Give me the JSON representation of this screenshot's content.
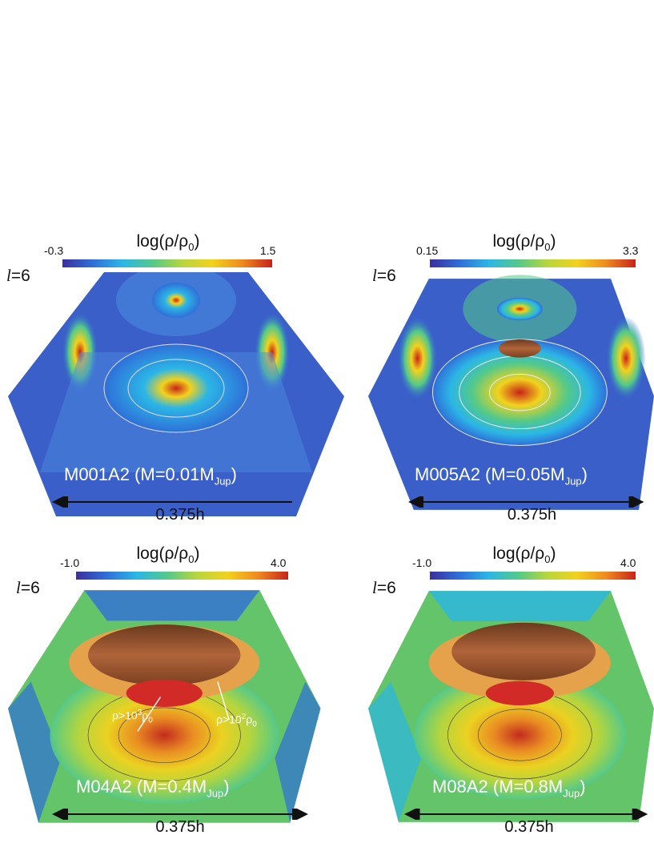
{
  "panels": [
    {
      "colorbar": {
        "title_main": "log(ρ/ρ",
        "title_sub": "0",
        "title_end": ")",
        "min": "-0.3",
        "max": "1.5"
      },
      "param": {
        "symbol": "l",
        "value": "=6"
      },
      "label": {
        "main": "M001A2 (M=0.01M",
        "sub": "Jup",
        "end": ")"
      },
      "scale": "0.375h",
      "annotations": []
    },
    {
      "colorbar": {
        "title_main": "log(ρ/ρ",
        "title_sub": "0",
        "title_end": ")",
        "min": "0.15",
        "max": "3.3"
      },
      "param": {
        "symbol": "l",
        "value": "=6"
      },
      "label": {
        "main": "M005A2 (M=0.05M",
        "sub": "Jup",
        "end": ")"
      },
      "scale": "0.375h",
      "annotations": []
    },
    {
      "colorbar": {
        "title_main": "log(ρ/ρ",
        "title_sub": "0",
        "title_end": ")",
        "min": "-1.0",
        "max": "4.0"
      },
      "param": {
        "symbol": "l",
        "value": "=6"
      },
      "label": {
        "main": "M04A2 (M=0.4M",
        "sub": "Jup",
        "end": ")"
      },
      "scale": "0.375h",
      "annotations": [
        {
          "pre": "ρ>10",
          "sup": "3",
          "mid": "ρ",
          "sub": "0"
        },
        {
          "pre": "ρ>10",
          "sup": "2",
          "mid": "ρ",
          "sub": "0"
        }
      ]
    },
    {
      "colorbar": {
        "title_main": "log(ρ/ρ",
        "title_sub": "0",
        "title_end": ")",
        "min": "-1.0",
        "max": "4.0"
      },
      "param": {
        "symbol": "l",
        "value": "=6"
      },
      "label": {
        "main": "M08A2 (M=0.8M",
        "sub": "Jup",
        "end": ")"
      },
      "scale": "0.375h",
      "annotations": []
    }
  ]
}
